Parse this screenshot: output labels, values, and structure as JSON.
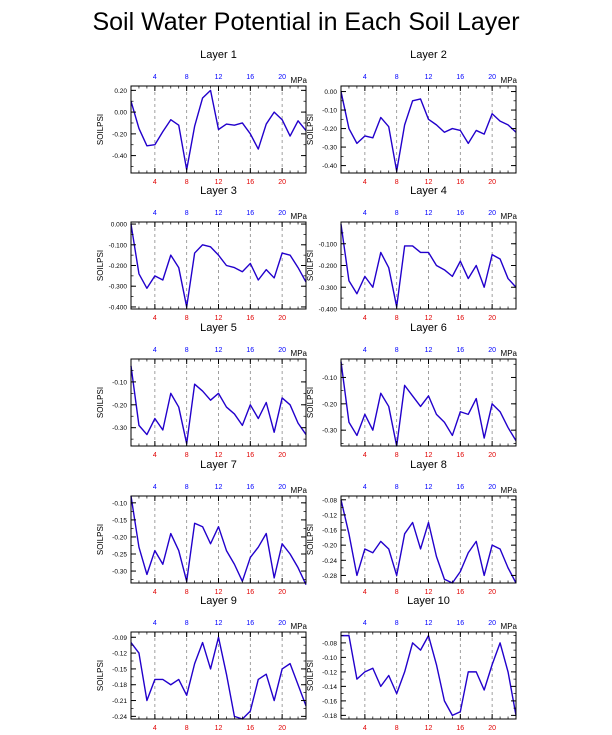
{
  "title": "Soil Water Potential in Each Soil Layer",
  "colors": {
    "line": "#2200cc",
    "top_ticks": "#0000ff",
    "bottom_ticks": "#e00000",
    "grid": "#888888",
    "axes": "#000000"
  },
  "chart_data": [
    {
      "type": "line",
      "title": "Layer 1",
      "units": "MPa",
      "ylabel": "SOILPSI",
      "x": [
        1,
        2,
        3,
        4,
        5,
        6,
        7,
        8,
        9,
        10,
        11,
        12,
        13,
        14,
        15,
        16,
        17,
        18,
        19,
        20,
        21,
        22,
        23
      ],
      "values": [
        0.1,
        -0.15,
        -0.31,
        -0.3,
        -0.18,
        -0.07,
        -0.12,
        -0.53,
        -0.13,
        0.13,
        0.2,
        -0.16,
        -0.11,
        -0.12,
        -0.1,
        -0.2,
        -0.34,
        -0.11,
        0.0,
        -0.07,
        -0.22,
        -0.08,
        -0.17
      ],
      "xlim": [
        1,
        23
      ],
      "ylim": [
        -0.56,
        0.24
      ],
      "yticks": [
        0.2,
        0.0,
        -0.2,
        -0.4
      ],
      "ytick_labels": [
        "0.20",
        "0.00",
        "-0.20",
        "-0.40"
      ],
      "xticks_top": [
        4,
        8,
        12,
        16,
        20
      ],
      "xticks_bottom": [
        4,
        8,
        12,
        16,
        20
      ]
    },
    {
      "type": "line",
      "title": "Layer 2",
      "units": "MPa",
      "ylabel": "SOILPSI",
      "x": [
        1,
        2,
        3,
        4,
        5,
        6,
        7,
        8,
        9,
        10,
        11,
        12,
        13,
        14,
        15,
        16,
        17,
        18,
        19,
        20,
        21,
        22,
        23
      ],
      "values": [
        0.0,
        -0.2,
        -0.28,
        -0.24,
        -0.25,
        -0.14,
        -0.19,
        -0.43,
        -0.18,
        -0.05,
        -0.04,
        -0.15,
        -0.18,
        -0.22,
        -0.2,
        -0.21,
        -0.28,
        -0.21,
        -0.23,
        -0.12,
        -0.16,
        -0.18,
        -0.22
      ],
      "xlim": [
        1,
        23
      ],
      "ylim": [
        -0.44,
        0.03
      ],
      "yticks": [
        0.0,
        -0.1,
        -0.2,
        -0.3,
        -0.4
      ],
      "ytick_labels": [
        "0.00",
        "-0.10",
        "-0.20",
        "-0.30",
        "-0.40"
      ],
      "xticks_top": [
        4,
        8,
        12,
        16,
        20
      ],
      "xticks_bottom": [
        4,
        8,
        12,
        16,
        20
      ]
    },
    {
      "type": "line",
      "title": "Layer 3",
      "units": "MPa",
      "ylabel": "SOILPSI",
      "x": [
        1,
        2,
        3,
        4,
        5,
        6,
        7,
        8,
        9,
        10,
        11,
        12,
        13,
        14,
        15,
        16,
        17,
        18,
        19,
        20,
        21,
        22,
        23
      ],
      "values": [
        0.0,
        -0.24,
        -0.31,
        -0.25,
        -0.27,
        -0.15,
        -0.21,
        -0.4,
        -0.14,
        -0.1,
        -0.11,
        -0.15,
        -0.2,
        -0.21,
        -0.23,
        -0.19,
        -0.27,
        -0.22,
        -0.26,
        -0.14,
        -0.15,
        -0.21,
        -0.28
      ],
      "xlim": [
        1,
        23
      ],
      "ylim": [
        -0.41,
        0.01
      ],
      "yticks": [
        0.0,
        -0.1,
        -0.2,
        -0.3,
        -0.4
      ],
      "ytick_labels": [
        "0.000",
        "-0.100",
        "-0.200",
        "-0.300",
        "-0.400"
      ],
      "xticks_top": [
        4,
        8,
        12,
        16,
        20
      ],
      "xticks_bottom": [
        4,
        8,
        12,
        16,
        20
      ]
    },
    {
      "type": "line",
      "title": "Layer 4",
      "units": "MPa",
      "ylabel": "SOILPSI",
      "x": [
        1,
        2,
        3,
        4,
        5,
        6,
        7,
        8,
        9,
        10,
        11,
        12,
        13,
        14,
        15,
        16,
        17,
        18,
        19,
        20,
        21,
        22,
        23
      ],
      "values": [
        -0.01,
        -0.27,
        -0.33,
        -0.25,
        -0.3,
        -0.14,
        -0.21,
        -0.39,
        -0.11,
        -0.11,
        -0.14,
        -0.14,
        -0.2,
        -0.22,
        -0.25,
        -0.18,
        -0.26,
        -0.2,
        -0.3,
        -0.15,
        -0.17,
        -0.26,
        -0.3
      ],
      "xlim": [
        1,
        23
      ],
      "ylim": [
        -0.4,
        0.0
      ],
      "yticks": [
        -0.1,
        -0.2,
        -0.3,
        -0.4
      ],
      "ytick_labels": [
        "-0.100",
        "-0.200",
        "-0.300",
        "-0.400"
      ],
      "xticks_top": [
        4,
        8,
        12,
        16,
        20
      ],
      "xticks_bottom": [
        4,
        8,
        12,
        16,
        20
      ]
    },
    {
      "type": "line",
      "title": "Layer 5",
      "units": "MPa",
      "ylabel": "SOILPSI",
      "x": [
        1,
        2,
        3,
        4,
        5,
        6,
        7,
        8,
        9,
        10,
        11,
        12,
        13,
        14,
        15,
        16,
        17,
        18,
        19,
        20,
        21,
        22,
        23
      ],
      "values": [
        -0.03,
        -0.29,
        -0.33,
        -0.26,
        -0.31,
        -0.15,
        -0.21,
        -0.37,
        -0.11,
        -0.14,
        -0.18,
        -0.15,
        -0.21,
        -0.24,
        -0.29,
        -0.2,
        -0.26,
        -0.19,
        -0.32,
        -0.17,
        -0.2,
        -0.28,
        -0.33
      ],
      "xlim": [
        1,
        23
      ],
      "ylim": [
        -0.38,
        0.0
      ],
      "yticks": [
        -0.1,
        -0.2,
        -0.3
      ],
      "ytick_labels": [
        "-0.10",
        "-0.20",
        "-0.30"
      ],
      "xticks_top": [
        4,
        8,
        12,
        16,
        20
      ],
      "xticks_bottom": [
        4,
        8,
        12,
        16,
        20
      ]
    },
    {
      "type": "line",
      "title": "Layer 6",
      "units": "MPa",
      "ylabel": "SOILPSI",
      "x": [
        1,
        2,
        3,
        4,
        5,
        6,
        7,
        8,
        9,
        10,
        11,
        12,
        13,
        14,
        15,
        16,
        17,
        18,
        19,
        20,
        21,
        22,
        23
      ],
      "values": [
        -0.04,
        -0.27,
        -0.32,
        -0.24,
        -0.3,
        -0.16,
        -0.21,
        -0.36,
        -0.13,
        -0.17,
        -0.21,
        -0.17,
        -0.24,
        -0.27,
        -0.32,
        -0.23,
        -0.24,
        -0.18,
        -0.33,
        -0.2,
        -0.23,
        -0.29,
        -0.34
      ],
      "xlim": [
        1,
        23
      ],
      "ylim": [
        -0.36,
        -0.03
      ],
      "yticks": [
        -0.1,
        -0.2,
        -0.3
      ],
      "ytick_labels": [
        "-0.10",
        "-0.20",
        "-0.30"
      ],
      "xticks_top": [
        4,
        8,
        12,
        16,
        20
      ],
      "xticks_bottom": [
        4,
        8,
        12,
        16,
        20
      ]
    },
    {
      "type": "line",
      "title": "Layer 7",
      "units": "MPa",
      "ylabel": "SOILPSI",
      "x": [
        1,
        2,
        3,
        4,
        5,
        6,
        7,
        8,
        9,
        10,
        11,
        12,
        13,
        14,
        15,
        16,
        17,
        18,
        19,
        20,
        21,
        22,
        23
      ],
      "values": [
        -0.08,
        -0.23,
        -0.31,
        -0.24,
        -0.28,
        -0.19,
        -0.24,
        -0.33,
        -0.16,
        -0.17,
        -0.22,
        -0.17,
        -0.24,
        -0.28,
        -0.33,
        -0.26,
        -0.23,
        -0.19,
        -0.32,
        -0.22,
        -0.25,
        -0.29,
        -0.34
      ],
      "xlim": [
        1,
        23
      ],
      "ylim": [
        -0.335,
        -0.08
      ],
      "yticks": [
        -0.1,
        -0.15,
        -0.2,
        -0.25,
        -0.3
      ],
      "ytick_labels": [
        "-0.10",
        "-0.15",
        "-0.20",
        "-0.25",
        "-0.30"
      ],
      "xticks_top": [
        4,
        8,
        12,
        16,
        20
      ],
      "xticks_bottom": [
        4,
        8,
        12,
        16,
        20
      ]
    },
    {
      "type": "line",
      "title": "Layer 8",
      "units": "MPa",
      "ylabel": "SOILPSI",
      "x": [
        1,
        2,
        3,
        4,
        5,
        6,
        7,
        8,
        9,
        10,
        11,
        12,
        13,
        14,
        15,
        16,
        17,
        18,
        19,
        20,
        21,
        22,
        23
      ],
      "values": [
        -0.08,
        -0.17,
        -0.28,
        -0.21,
        -0.22,
        -0.19,
        -0.21,
        -0.28,
        -0.17,
        -0.14,
        -0.21,
        -0.14,
        -0.23,
        -0.29,
        -0.3,
        -0.27,
        -0.22,
        -0.19,
        -0.28,
        -0.2,
        -0.21,
        -0.26,
        -0.3
      ],
      "xlim": [
        1,
        23
      ],
      "ylim": [
        -0.3,
        -0.07
      ],
      "yticks": [
        -0.08,
        -0.12,
        -0.16,
        -0.2,
        -0.24,
        -0.28
      ],
      "ytick_labels": [
        "-0.08",
        "-0.12",
        "-0.16",
        "-0.20",
        "-0.24",
        "-0.28"
      ],
      "xticks_top": [
        4,
        8,
        12,
        16,
        20
      ],
      "xticks_bottom": [
        4,
        8,
        12,
        16,
        20
      ]
    },
    {
      "type": "line",
      "title": "Layer 9",
      "units": "MPa",
      "ylabel": "SOILPSI",
      "x": [
        1,
        2,
        3,
        4,
        5,
        6,
        7,
        8,
        9,
        10,
        11,
        12,
        13,
        14,
        15,
        16,
        17,
        18,
        19,
        20,
        21,
        22,
        23
      ],
      "values": [
        -0.1,
        -0.12,
        -0.21,
        -0.17,
        -0.17,
        -0.18,
        -0.17,
        -0.2,
        -0.14,
        -0.1,
        -0.15,
        -0.09,
        -0.16,
        -0.24,
        -0.245,
        -0.23,
        -0.17,
        -0.16,
        -0.21,
        -0.15,
        -0.14,
        -0.18,
        -0.22
      ],
      "xlim": [
        1,
        23
      ],
      "ylim": [
        -0.245,
        -0.08
      ],
      "yticks": [
        -0.09,
        -0.12,
        -0.15,
        -0.18,
        -0.21,
        -0.24
      ],
      "ytick_labels": [
        "-0.09",
        "-0.12",
        "-0.15",
        "-0.18",
        "-0.21",
        "-0.24"
      ],
      "xticks_top": [
        4,
        8,
        12,
        16,
        20
      ],
      "xticks_bottom": [
        4,
        8,
        12,
        16,
        20
      ]
    },
    {
      "type": "line",
      "title": "Layer 10",
      "units": "MPa",
      "ylabel": "SOILPSI",
      "x": [
        1,
        2,
        3,
        4,
        5,
        6,
        7,
        8,
        9,
        10,
        11,
        12,
        13,
        14,
        15,
        16,
        17,
        18,
        19,
        20,
        21,
        22,
        23
      ],
      "values": [
        -0.07,
        -0.07,
        -0.13,
        -0.12,
        -0.115,
        -0.14,
        -0.125,
        -0.15,
        -0.12,
        -0.08,
        -0.09,
        -0.07,
        -0.11,
        -0.16,
        -0.18,
        -0.175,
        -0.12,
        -0.12,
        -0.145,
        -0.11,
        -0.08,
        -0.12,
        -0.18
      ],
      "xlim": [
        1,
        23
      ],
      "ylim": [
        -0.185,
        -0.065
      ],
      "yticks": [
        -0.08,
        -0.1,
        -0.12,
        -0.14,
        -0.16,
        -0.18
      ],
      "ytick_labels": [
        "-0.08",
        "-0.10",
        "-0.12",
        "-0.14",
        "-0.16",
        "-0.18"
      ],
      "xticks_top": [
        4,
        8,
        12,
        16,
        20
      ],
      "xticks_bottom": [
        4,
        8,
        12,
        16,
        20
      ]
    }
  ]
}
